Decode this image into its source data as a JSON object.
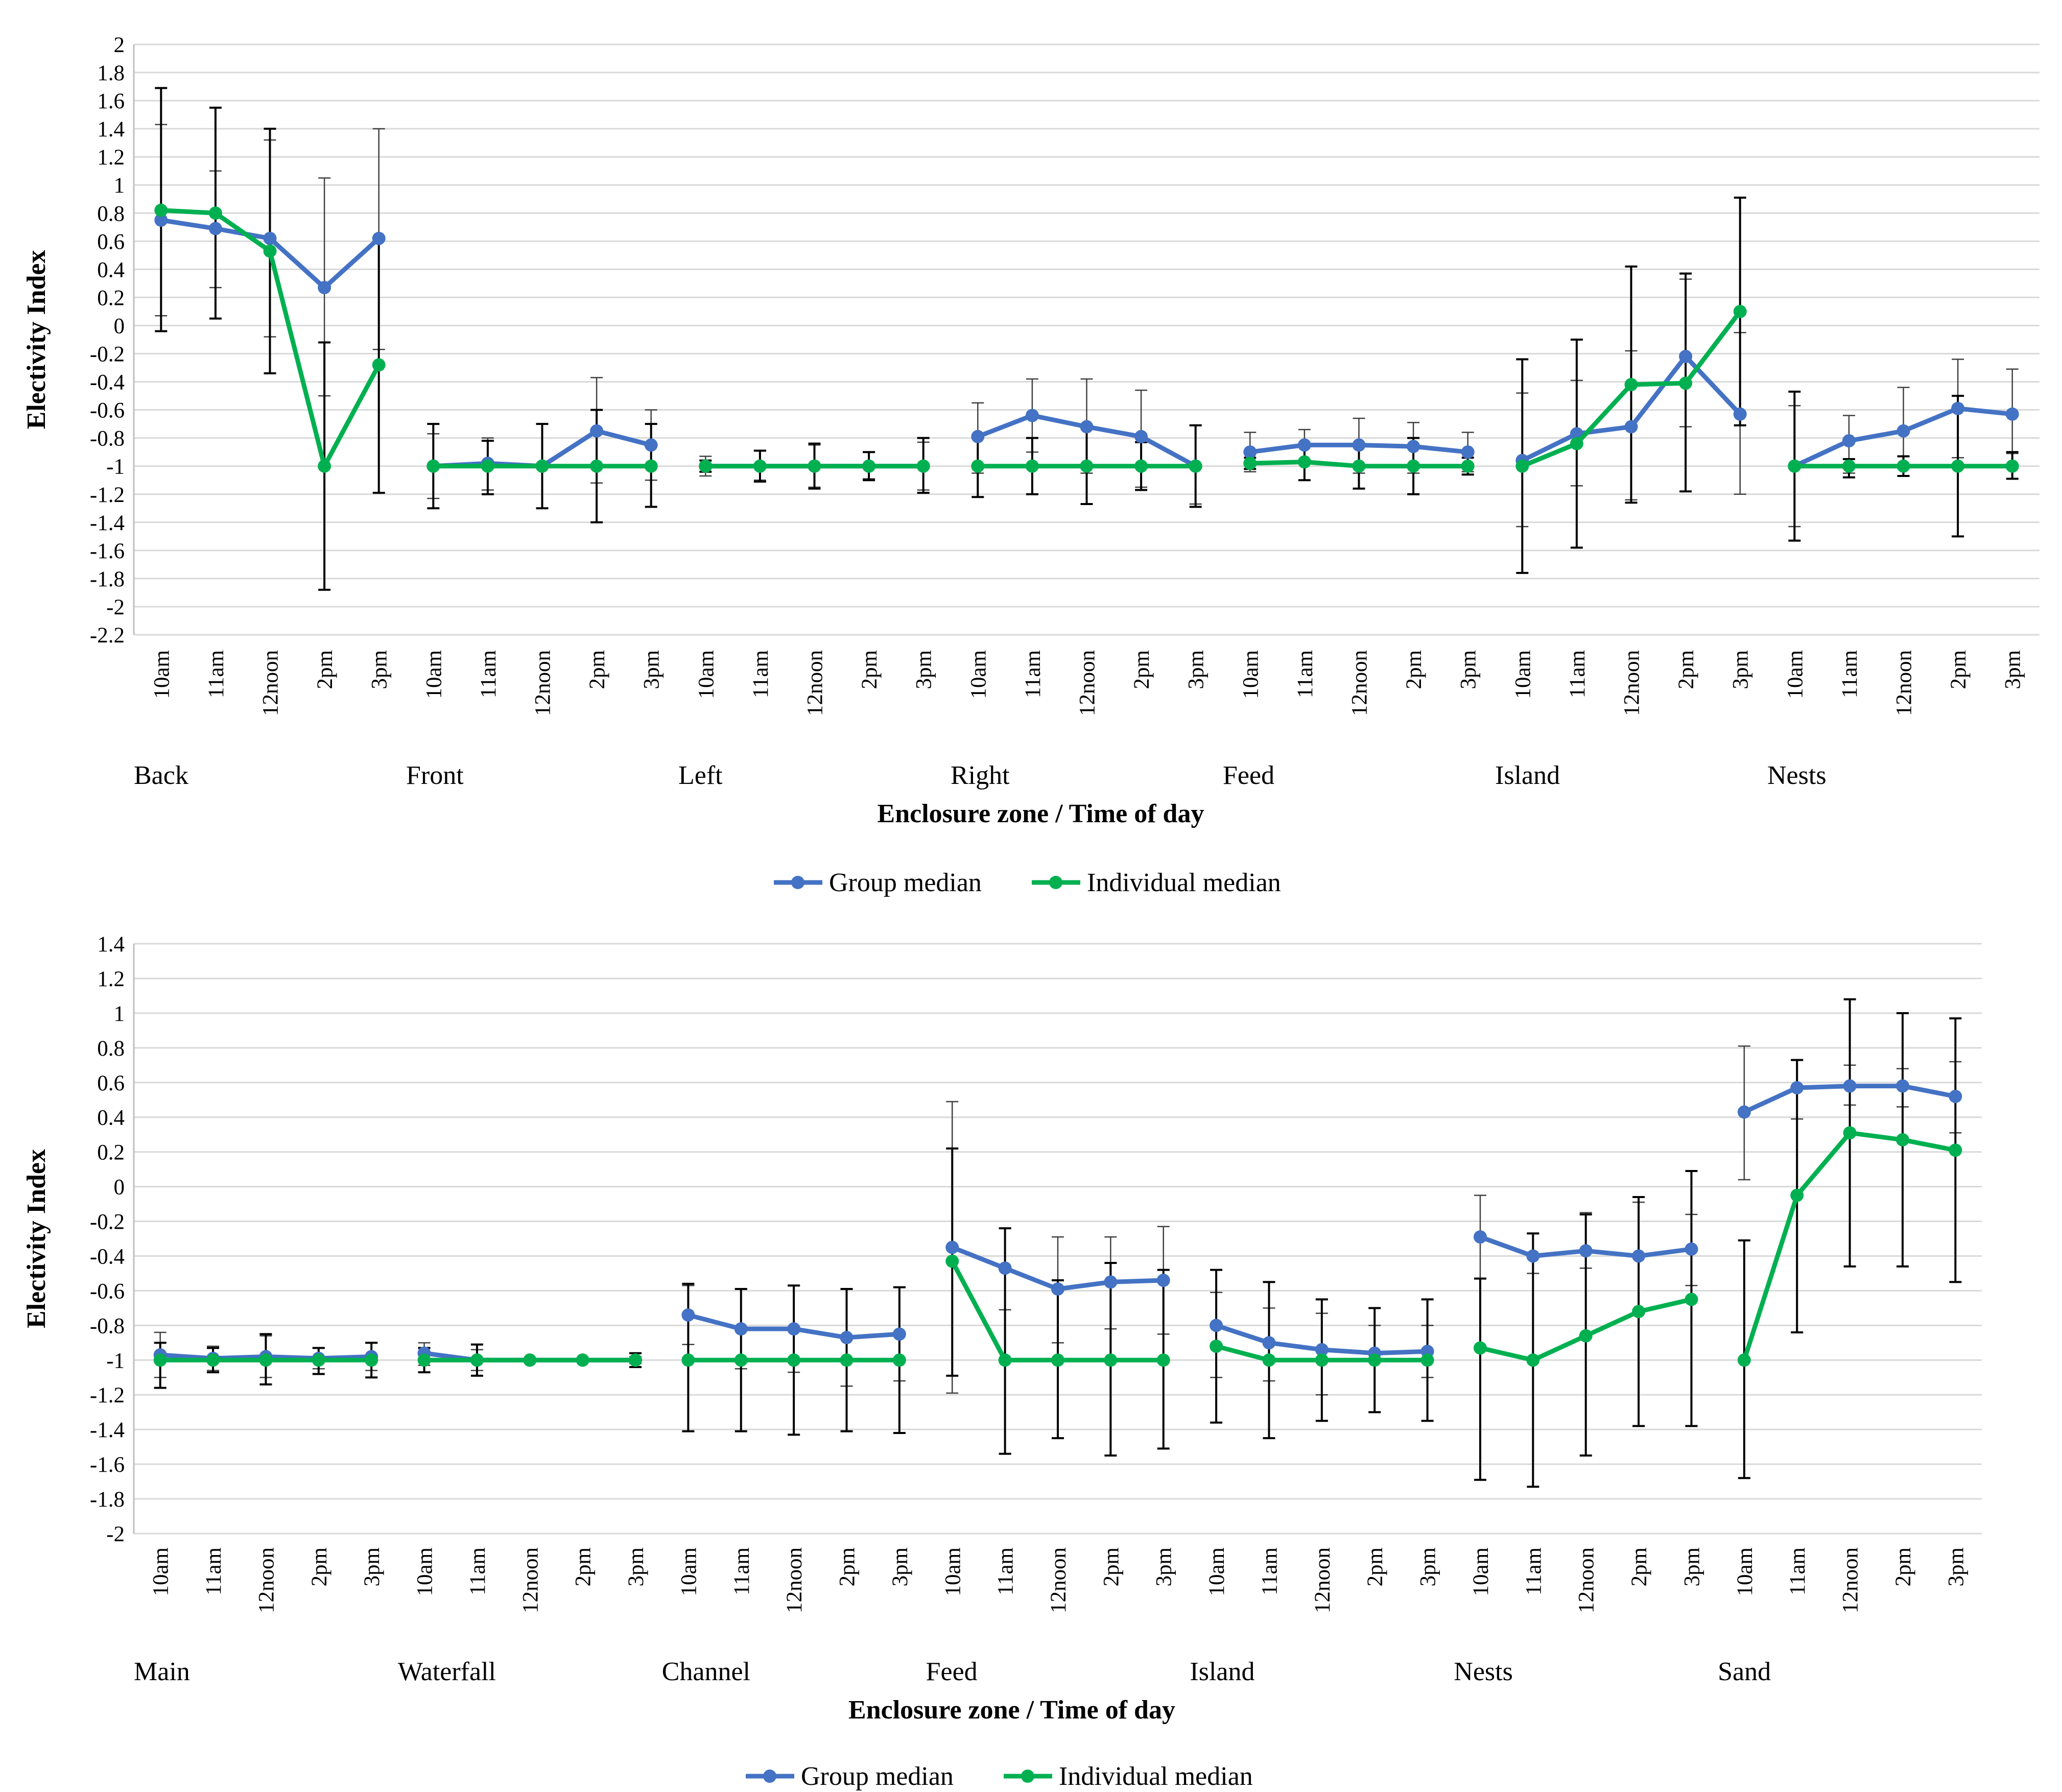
{
  "chart_data": [
    {
      "type": "line",
      "xlabel": "Enclosure zone / Time of day",
      "ylabel": "Electivity Index",
      "ylim": [
        -2.2,
        2
      ],
      "ytick_step": 0.2,
      "yticks": [
        "2",
        "1.8",
        "1.6",
        "1.4",
        "1.2",
        "1",
        "0.8",
        "0.6",
        "0.4",
        "0.2",
        "0",
        "-0.2",
        "-0.4",
        "-0.6",
        "-0.8",
        "-1",
        "-1.2",
        "-1.4",
        "-1.6",
        "-1.8",
        "-2",
        "-2.2"
      ],
      "times": [
        "10am",
        "11am",
        "12noon",
        "2pm",
        "3pm"
      ],
      "zones": [
        "Back",
        "Front",
        "Left",
        "Right",
        "Feed",
        "Island",
        "Nests"
      ],
      "grid": true,
      "legend_position": "bottom-center",
      "series": [
        {
          "name": "Group median",
          "color": "#4472C4",
          "values": [
            [
              0.75,
              0.69,
              0.62,
              0.27,
              0.62
            ],
            [
              -1,
              -0.98,
              -1,
              -0.75,
              -0.85
            ],
            [
              -1,
              -1,
              -1,
              -1,
              -1
            ],
            [
              -0.79,
              -0.64,
              -0.72,
              -0.79,
              -1
            ],
            [
              -0.9,
              -0.85,
              -0.85,
              -0.86,
              -0.9
            ],
            [
              -0.96,
              -0.77,
              -0.72,
              -0.22,
              -0.63
            ],
            [
              -1,
              -0.82,
              -0.75,
              -0.59,
              -0.63
            ]
          ],
          "err_low": [
            [
              0.07,
              0.27,
              -0.08,
              -0.5,
              -0.17
            ],
            [
              -1.23,
              -1.17,
              -1.3,
              -1.12,
              -1.1
            ],
            [
              -1.07,
              -1.1,
              -1.15,
              -1.09,
              -1.17
            ],
            [
              -1.05,
              -0.9,
              -1.05,
              -1.15,
              -1.27
            ],
            [
              -1.04,
              -0.97,
              -1.05,
              -1.05,
              -1.04
            ],
            [
              -1.43,
              -1.14,
              -1.24,
              -0.72,
              -1.2
            ],
            [
              -1.43,
              -1.05,
              -1.07,
              -0.94,
              -0.91
            ]
          ],
          "err_high": [
            [
              1.43,
              1.1,
              1.32,
              1.05,
              1.4
            ],
            [
              -0.77,
              -0.8,
              -0.7,
              -0.37,
              -0.6
            ],
            [
              -0.93,
              -0.89,
              -0.85,
              -0.9,
              -0.83
            ],
            [
              -0.55,
              -0.38,
              -0.38,
              -0.46,
              -0.71
            ],
            [
              -0.76,
              -0.74,
              -0.66,
              -0.69,
              -0.76
            ],
            [
              -0.48,
              -0.39,
              -0.18,
              0.33,
              -0.05
            ],
            [
              -0.57,
              -0.64,
              -0.44,
              -0.24,
              -0.31
            ]
          ]
        },
        {
          "name": "Individual median",
          "color": "#00B050",
          "values": [
            [
              0.82,
              0.8,
              0.53,
              -1,
              -0.28
            ],
            [
              -1,
              -1,
              -1,
              -1,
              -1
            ],
            [
              -1,
              -1,
              -1,
              -1,
              -1
            ],
            [
              -1,
              -1,
              -1,
              -1,
              -1
            ],
            [
              -0.98,
              -0.97,
              -1,
              -1,
              -1
            ],
            [
              -1,
              -0.84,
              -0.42,
              -0.41,
              0.1
            ],
            [
              -1,
              -1,
              -1,
              -1,
              -1
            ]
          ],
          "err_low": [
            [
              -0.04,
              0.05,
              -0.34,
              -1.88,
              -1.19
            ],
            [
              -1.3,
              -1.2,
              -1.3,
              -1.4,
              -1.29
            ],
            [
              -1.04,
              -1.11,
              -1.16,
              -1.1,
              -1.19
            ],
            [
              -1.22,
              -1.2,
              -1.27,
              -1.17,
              -1.29
            ],
            [
              -1.02,
              -1.1,
              -1.16,
              -1.2,
              -1.06
            ],
            [
              -1.76,
              -1.58,
              -1.26,
              -1.18,
              -0.71
            ],
            [
              -1.53,
              -1.08,
              -1.07,
              -1.5,
              -1.09
            ]
          ],
          "err_high": [
            [
              1.69,
              1.55,
              1.4,
              -0.12,
              0.63
            ],
            [
              -0.7,
              -0.82,
              -0.7,
              -0.6,
              -0.7
            ],
            [
              -0.96,
              -0.89,
              -0.84,
              -0.9,
              -0.8
            ],
            [
              -0.78,
              -0.8,
              -0.73,
              -0.83,
              -0.71
            ],
            [
              -0.94,
              -0.84,
              -0.84,
              -0.8,
              -0.94
            ],
            [
              -0.24,
              -0.1,
              0.42,
              0.37,
              0.91
            ],
            [
              -0.47,
              -0.95,
              -0.93,
              -0.5,
              -0.9
            ]
          ]
        }
      ]
    },
    {
      "type": "line",
      "xlabel": "Enclosure zone / Time of day",
      "ylabel": "Electivity Index",
      "ylim": [
        -2,
        1.4
      ],
      "ytick_step": 0.2,
      "yticks": [
        "1.4",
        "1.2",
        "1",
        "0.8",
        "0.6",
        "0.4",
        "0.2",
        "0",
        "-0.2",
        "-0.4",
        "-0.6",
        "-0.8",
        "-1",
        "-1.2",
        "-1.4",
        "-1.6",
        "-1.8",
        "-2"
      ],
      "times": [
        "10am",
        "11am",
        "12noon",
        "2pm",
        "3pm"
      ],
      "zones": [
        "Main",
        "Waterfall",
        "Channel",
        "Feed",
        "Island",
        "Nests",
        "Sand"
      ],
      "grid": true,
      "legend_position": "bottom-center",
      "series": [
        {
          "name": "Group median",
          "color": "#4472C4",
          "values": [
            [
              -0.97,
              -0.99,
              -0.98,
              -0.99,
              -0.98
            ],
            [
              -0.96,
              -1,
              -1,
              -1,
              -1
            ],
            [
              -0.74,
              -0.82,
              -0.82,
              -0.87,
              -0.85
            ],
            [
              -0.35,
              -0.47,
              -0.59,
              -0.55,
              -0.54
            ],
            [
              -0.8,
              -0.9,
              -0.94,
              -0.96,
              -0.95
            ],
            [
              -0.29,
              -0.4,
              -0.37,
              -0.4,
              -0.36
            ],
            [
              0.43,
              0.57,
              0.58,
              0.58,
              0.52
            ]
          ],
          "err_low": [
            [
              -1.1,
              -1.06,
              -1.1,
              -1.05,
              -1.06
            ],
            [
              -1.03,
              -1.06,
              -1,
              -1,
              -1.02
            ],
            [
              -0.91,
              -1.05,
              -1.07,
              -1.15,
              -1.12
            ],
            [
              -1.19,
              -0.71,
              -0.9,
              -0.82,
              -0.85
            ],
            [
              -1.1,
              -1.12,
              -1.2,
              -1.3,
              -1.1
            ],
            [
              -0.53,
              -0.5,
              -0.47,
              -0.72,
              -0.57
            ],
            [
              0.04,
              0.39,
              0.47,
              0.46,
              0.31
            ]
          ],
          "err_high": [
            [
              -0.84,
              -0.92,
              -0.86,
              -0.93,
              -0.9
            ],
            [
              -0.9,
              -0.94,
              -1,
              -1,
              -0.98
            ],
            [
              -0.57,
              -0.59,
              -0.57,
              -0.59,
              -0.58
            ],
            [
              0.49,
              -0.24,
              -0.29,
              -0.29,
              -0.23
            ],
            [
              -0.61,
              -0.7,
              -0.73,
              -0.8,
              -0.8
            ],
            [
              -0.05,
              -0.27,
              -0.15,
              -0.09,
              -0.16
            ],
            [
              0.81,
              0.73,
              0.7,
              0.68,
              0.72
            ]
          ]
        },
        {
          "name": "Individual median",
          "color": "#00B050",
          "values": [
            [
              -1,
              -1,
              -1,
              -1,
              -1
            ],
            [
              -1,
              -1,
              -1,
              -1,
              -1
            ],
            [
              -1,
              -1,
              -1,
              -1,
              -1
            ],
            [
              -0.43,
              -1,
              -1,
              -1,
              -1
            ],
            [
              -0.92,
              -1,
              -1,
              -1,
              -1
            ],
            [
              -0.93,
              -1,
              -0.86,
              -0.72,
              -0.65
            ],
            [
              -1,
              -0.05,
              0.31,
              0.27,
              0.21
            ]
          ],
          "err_low": [
            [
              -1.16,
              -1.07,
              -1.14,
              -1.08,
              -1.1
            ],
            [
              -1.07,
              -1.09,
              -1,
              -1,
              -1.04
            ],
            [
              -1.41,
              -1.41,
              -1.43,
              -1.41,
              -1.42
            ],
            [
              -1.09,
              -1.54,
              -1.45,
              -1.55,
              -1.51
            ],
            [
              -1.36,
              -1.45,
              -1.35,
              -1.3,
              -1.35
            ],
            [
              -1.69,
              -1.73,
              -1.55,
              -1.38,
              -1.38
            ],
            [
              -1.68,
              -0.84,
              -0.46,
              -0.46,
              -0.55
            ]
          ],
          "err_high": [
            [
              -0.9,
              -0.93,
              -0.85,
              -0.93,
              -0.9
            ],
            [
              -0.93,
              -0.91,
              -1,
              -1,
              -0.96
            ],
            [
              -0.56,
              -0.59,
              -0.57,
              -0.59,
              -0.58
            ],
            [
              0.22,
              -0.24,
              -0.54,
              -0.44,
              -0.48
            ],
            [
              -0.48,
              -0.55,
              -0.65,
              -0.7,
              -0.65
            ],
            [
              -0.53,
              -0.27,
              -0.16,
              -0.06,
              0.09
            ],
            [
              -0.31,
              0.73,
              1.08,
              1.0,
              0.97
            ]
          ]
        }
      ]
    }
  ]
}
